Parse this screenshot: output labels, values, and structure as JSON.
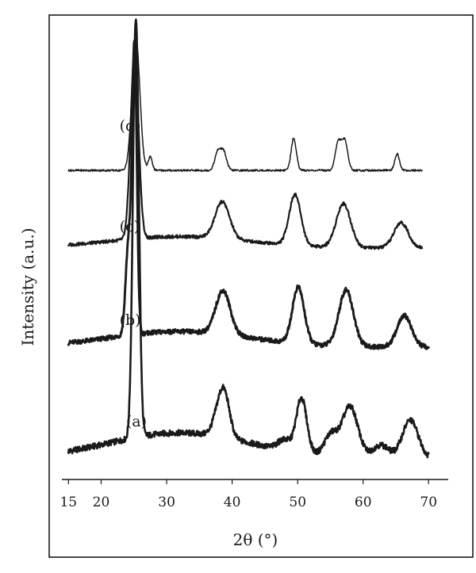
{
  "chart_data": {
    "type": "line",
    "title": "",
    "xlabel": "2θ (°)",
    "ylabel": "Intensity (a.u.)",
    "xlim": [
      14,
      73
    ],
    "y_ticks_shown": false,
    "grid": false,
    "xticks": [
      {
        "value": 15,
        "label": "15"
      },
      {
        "value": 20,
        "label": "20"
      },
      {
        "value": 30,
        "label": "30"
      },
      {
        "value": 40,
        "label": "40"
      },
      {
        "value": 50,
        "label": "50"
      },
      {
        "value": 60,
        "label": "60"
      },
      {
        "value": 70,
        "label": "70"
      }
    ],
    "series": [
      {
        "name": "(a)",
        "label_x": 23.8,
        "x_range": [
          15,
          70
        ],
        "baseline": 0.06,
        "peaks": [
          {
            "x": 25.3,
            "height": 1.0,
            "width": 0.45
          },
          {
            "x": 38.0,
            "height": 0.055,
            "width": 0.9
          },
          {
            "x": 38.9,
            "height": 0.08,
            "width": 0.8
          },
          {
            "x": 48.0,
            "height": 0.025,
            "width": 1.0
          },
          {
            "x": 50.6,
            "height": 0.13,
            "width": 0.8
          },
          {
            "x": 55.1,
            "height": 0.05,
            "width": 1.0
          },
          {
            "x": 58.0,
            "height": 0.12,
            "width": 1.2
          },
          {
            "x": 62.7,
            "height": 0.03,
            "width": 1.2
          },
          {
            "x": 67.2,
            "height": 0.09,
            "width": 1.2
          }
        ]
      },
      {
        "name": "(b)",
        "label_x": 22.8,
        "x_range": [
          15,
          70
        ],
        "baseline": 0.05,
        "peaks": [
          {
            "x": 24.2,
            "height": 0.3,
            "width": 0.45
          },
          {
            "x": 25.1,
            "height": 0.9,
            "width": 0.35
          },
          {
            "x": 38.6,
            "height": 0.14,
            "width": 1.1
          },
          {
            "x": 50.1,
            "height": 0.18,
            "width": 0.9
          },
          {
            "x": 57.4,
            "height": 0.18,
            "width": 1.1
          },
          {
            "x": 66.3,
            "height": 0.1,
            "width": 1.1
          }
        ]
      },
      {
        "name": "(c)",
        "label_x": 22.8,
        "x_range": [
          15,
          69
        ],
        "baseline": 0.05,
        "peaks": [
          {
            "x": 25.1,
            "height": 0.82,
            "width": 0.6
          },
          {
            "x": 38.5,
            "height": 0.16,
            "width": 1.1
          },
          {
            "x": 49.6,
            "height": 0.22,
            "width": 0.9
          },
          {
            "x": 57.0,
            "height": 0.19,
            "width": 1.1
          },
          {
            "x": 65.8,
            "height": 0.11,
            "width": 1.1
          }
        ]
      },
      {
        "name": "(d)",
        "label_x": 22.8,
        "x_range": [
          15,
          69
        ],
        "baseline": 0.0,
        "peaks": [
          {
            "x": 25.3,
            "height": 0.96,
            "width": 0.6
          },
          {
            "x": 27.5,
            "height": 0.1,
            "width": 0.3
          },
          {
            "x": 37.8,
            "height": 0.13,
            "width": 0.45
          },
          {
            "x": 38.7,
            "height": 0.13,
            "width": 0.45
          },
          {
            "x": 49.4,
            "height": 0.23,
            "width": 0.4
          },
          {
            "x": 56.2,
            "height": 0.2,
            "width": 0.45
          },
          {
            "x": 57.2,
            "height": 0.21,
            "width": 0.45
          },
          {
            "x": 65.2,
            "height": 0.12,
            "width": 0.35
          }
        ]
      }
    ]
  }
}
